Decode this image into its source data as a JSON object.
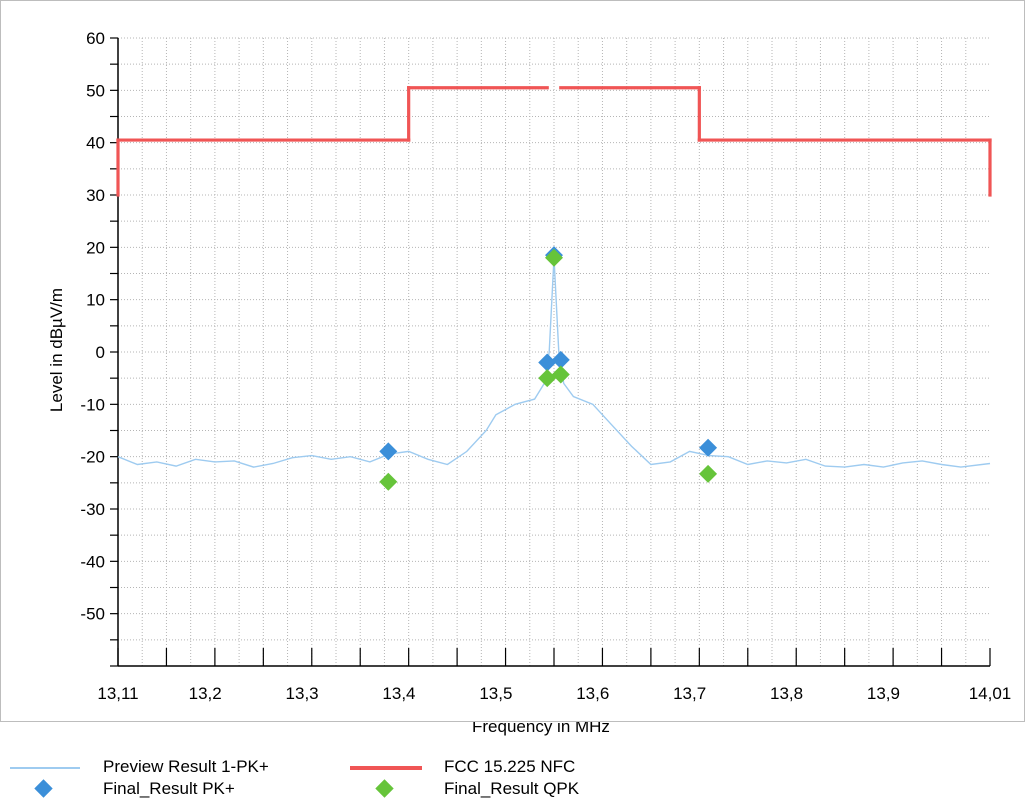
{
  "chart_data": {
    "type": "line",
    "xlabel": "Frequency in MHz",
    "ylabel": "Level in dBµV/m",
    "xlim": [
      13.11,
      14.01
    ],
    "ylim": [
      -60,
      60
    ],
    "x_ticks": [
      "13,11",
      "13,2",
      "13,3",
      "13,4",
      "13,5",
      "13,6",
      "13,7",
      "13,8",
      "13,9",
      "14,01"
    ],
    "x_tick_values": [
      13.11,
      13.2,
      13.3,
      13.4,
      13.5,
      13.6,
      13.7,
      13.8,
      13.9,
      14.01
    ],
    "y_ticks": [
      "60",
      "50",
      "40",
      "30",
      "20",
      "10",
      "0",
      "-10",
      "-20",
      "-30",
      "-40",
      "-50"
    ],
    "y_tick_values": [
      60,
      50,
      40,
      30,
      20,
      10,
      0,
      -10,
      -20,
      -30,
      -40,
      -50
    ],
    "grid": true,
    "legend_position": "bottom",
    "series": [
      {
        "name": "Preview Result 1-PK+",
        "kind": "line",
        "color": "#9ecbf0",
        "x": [
          13.11,
          13.13,
          13.15,
          13.17,
          13.19,
          13.21,
          13.23,
          13.25,
          13.27,
          13.29,
          13.31,
          13.33,
          13.35,
          13.37,
          13.39,
          13.41,
          13.43,
          13.45,
          13.47,
          13.49,
          13.5,
          13.52,
          13.54,
          13.55,
          13.555,
          13.56,
          13.565,
          13.57,
          13.58,
          13.6,
          13.62,
          13.64,
          13.66,
          13.68,
          13.7,
          13.72,
          13.74,
          13.76,
          13.78,
          13.8,
          13.82,
          13.84,
          13.86,
          13.88,
          13.9,
          13.92,
          13.94,
          13.96,
          13.98,
          14.01
        ],
        "y": [
          -20,
          -21.5,
          -21,
          -21.8,
          -20.5,
          -21,
          -20.8,
          -22,
          -21.3,
          -20.2,
          -19.8,
          -20.5,
          -20,
          -21,
          -19.5,
          -19,
          -20.5,
          -21.5,
          -19,
          -15,
          -12,
          -10,
          -9,
          -6,
          0,
          18,
          0,
          -6,
          -8.5,
          -10,
          -14,
          -18,
          -21.5,
          -21,
          -19,
          -19.8,
          -20,
          -21.5,
          -20.8,
          -21.2,
          -20.5,
          -21.8,
          -22,
          -21.5,
          -22,
          -21.2,
          -20.8,
          -21.5,
          -22,
          -21.3
        ]
      },
      {
        "name": "FCC 15.225 NFC",
        "kind": "step",
        "color": "#f05555",
        "segments": [
          {
            "x": [
              13.11,
              13.11
            ],
            "y": [
              30,
              40.5
            ]
          },
          {
            "x": [
              13.11,
              13.41
            ],
            "y": [
              40.5,
              40.5
            ]
          },
          {
            "x": [
              13.41,
              13.41
            ],
            "y": [
              40.5,
              50.5
            ]
          },
          {
            "x": [
              13.41,
              13.553
            ],
            "y": [
              50.5,
              50.5
            ]
          },
          {
            "x": [
              13.567,
              13.71
            ],
            "y": [
              50.5,
              50.5
            ]
          },
          {
            "x": [
              13.71,
              13.71
            ],
            "y": [
              50.5,
              40.5
            ]
          },
          {
            "x": [
              13.71,
              14.01
            ],
            "y": [
              40.5,
              40.5
            ]
          },
          {
            "x": [
              14.01,
              14.01
            ],
            "y": [
              40.5,
              30
            ]
          }
        ]
      },
      {
        "name": "Final_Result PK+",
        "kind": "marker",
        "color": "#3b8fd9",
        "x": [
          13.389,
          13.553,
          13.56,
          13.567,
          13.719
        ],
        "y": [
          -19,
          -2,
          18.5,
          -1.5,
          -18.3
        ]
      },
      {
        "name": "Final_Result QPK",
        "kind": "marker",
        "color": "#66c43a",
        "x": [
          13.389,
          13.553,
          13.56,
          13.567,
          13.719
        ],
        "y": [
          -24.8,
          -5,
          18,
          -4.3,
          -23.3
        ]
      }
    ]
  }
}
